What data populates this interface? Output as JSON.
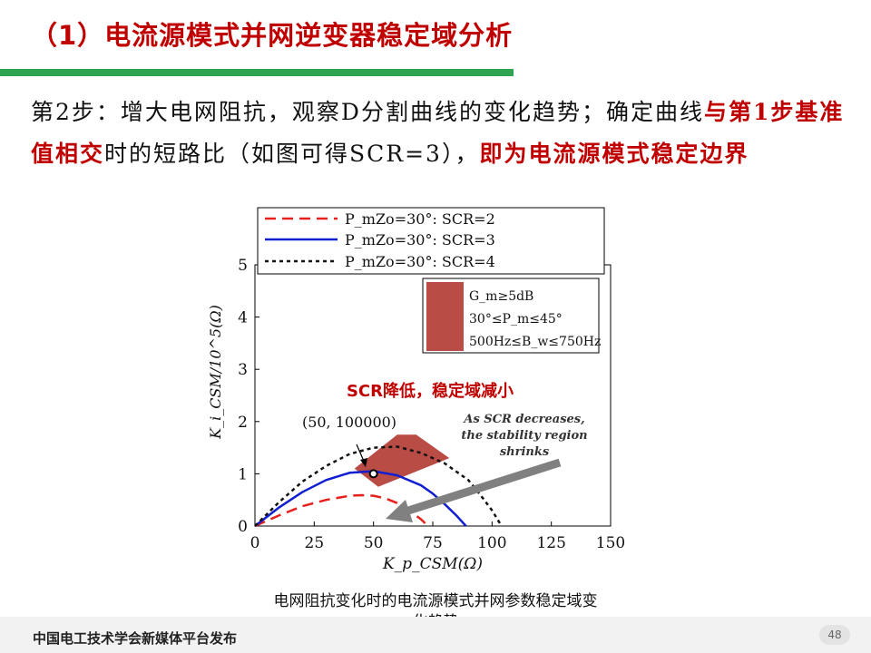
{
  "slide": {
    "title": "（1）电流源模式并网逆变器稳定域分析",
    "paragraph": {
      "part1": "第2步：增大电网阻抗，观察D分割曲线的变化趋势；确定曲线",
      "part2": "与第1步基准值相交",
      "part3": "时的短路比（如图可得SCR=3），",
      "part4": "即为电流源模式稳定边界"
    },
    "caption": "电网阻抗变化时的电流源模式并网参数稳定域变化趋势",
    "footer": "中国电工技术学会新媒体平台发布",
    "page_number": "48"
  },
  "chart_data": {
    "type": "line",
    "xlabel": "K_p_CSM(Ω)",
    "ylabel": "K_i_CSM/10^5(Ω)",
    "xlim": [
      0,
      150
    ],
    "ylim": [
      0,
      5
    ],
    "xticks": [
      "0",
      "25",
      "50",
      "75",
      "100",
      "125",
      "150"
    ],
    "yticks": [
      "0",
      "1",
      "2",
      "3",
      "4",
      "5"
    ],
    "series": [
      {
        "name": "P_mZo=30°: SCR=2",
        "color": "#e8201c",
        "style": "dashed",
        "x": [
          0,
          10,
          20,
          30,
          40,
          45,
          50,
          55,
          60,
          65,
          70,
          73
        ],
        "y": [
          0,
          0.2,
          0.38,
          0.5,
          0.58,
          0.59,
          0.58,
          0.53,
          0.44,
          0.3,
          0.13,
          0
        ]
      },
      {
        "name": "P_mZo=30°: SCR=3",
        "color": "#1020d0",
        "style": "solid",
        "x": [
          0,
          10,
          20,
          30,
          40,
          50,
          60,
          70,
          75,
          80,
          85,
          89
        ],
        "y": [
          0,
          0.35,
          0.65,
          0.88,
          1.02,
          1.05,
          0.97,
          0.78,
          0.62,
          0.42,
          0.2,
          0
        ]
      },
      {
        "name": "P_mZo=30°: SCR=4",
        "color": "#111111",
        "style": "dotted",
        "x": [
          0,
          10,
          20,
          30,
          40,
          50,
          60,
          70,
          80,
          90,
          95,
          100,
          104
        ],
        "y": [
          0,
          0.45,
          0.85,
          1.15,
          1.38,
          1.5,
          1.52,
          1.4,
          1.2,
          0.88,
          0.6,
          0.3,
          0
        ]
      }
    ],
    "region": {
      "label_lines": [
        "G_m≥5dB",
        "30°≤P_m≤45°",
        "500Hz≤B_w≤750Hz"
      ],
      "color": "#b94c45",
      "polygon": [
        [
          42,
          1.1
        ],
        [
          60,
          1.75
        ],
        [
          68,
          1.75
        ],
        [
          82,
          1.3
        ],
        [
          52,
          0.75
        ]
      ]
    },
    "point": {
      "x": 50,
      "y": 1.0,
      "label": "(50, 100000)"
    },
    "annotations": {
      "cn": "SCR降低，稳定域减小",
      "en_lines": [
        "As SCR decreases,",
        "the stability region",
        "shrinks"
      ]
    }
  }
}
